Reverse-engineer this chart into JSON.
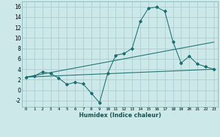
{
  "title": "",
  "xlabel": "Humidex (Indice chaleur)",
  "ylabel": "",
  "background_color": "#cce8e8",
  "grid_color": "#aacccc",
  "line_color": "#1a7070",
  "xlim": [
    -0.5,
    23.5
  ],
  "ylim": [
    -3.2,
    17.0
  ],
  "xticks": [
    0,
    1,
    2,
    3,
    4,
    5,
    6,
    7,
    8,
    9,
    10,
    11,
    12,
    13,
    14,
    15,
    16,
    17,
    18,
    19,
    20,
    21,
    22,
    23
  ],
  "yticks": [
    -2,
    0,
    2,
    4,
    6,
    8,
    10,
    12,
    14,
    16
  ],
  "line1_x": [
    0,
    1,
    2,
    3,
    4,
    5,
    6,
    7,
    8,
    9,
    10,
    11,
    12,
    13,
    14,
    15,
    16,
    17,
    18,
    19,
    20,
    21,
    22,
    23
  ],
  "line1_y": [
    2.5,
    2.7,
    3.5,
    3.2,
    2.3,
    1.1,
    1.5,
    1.2,
    -0.6,
    -2.4,
    3.2,
    6.7,
    7.0,
    8.0,
    13.2,
    15.7,
    15.9,
    15.1,
    9.3,
    5.2,
    6.5,
    5.0,
    4.5,
    4.0
  ],
  "line2_x": [
    0,
    23
  ],
  "line2_y": [
    2.5,
    9.2
  ],
  "line3_x": [
    0,
    23
  ],
  "line3_y": [
    2.5,
    4.0
  ],
  "marker": "D",
  "markersize": 2.0,
  "linewidth": 0.8
}
